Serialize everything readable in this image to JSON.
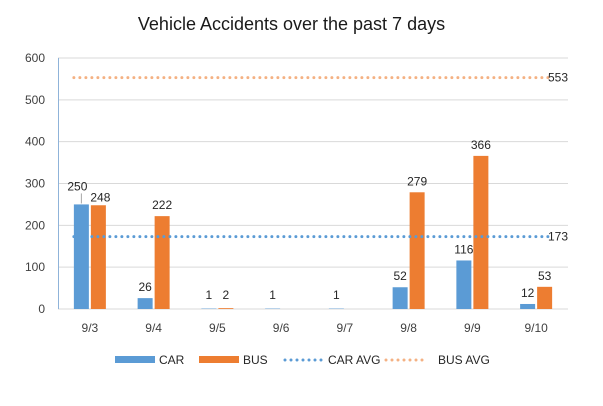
{
  "chart_data": {
    "type": "bar",
    "title": "Vehicle Accidents over the past 7 days",
    "categories": [
      "9/3",
      "9/4",
      "9/5",
      "9/6",
      "9/7",
      "9/8",
      "9/9",
      "9/10"
    ],
    "series": [
      {
        "name": "CAR",
        "color": "#5b9bd5",
        "values": [
          250,
          26,
          1,
          1,
          1,
          52,
          116,
          12
        ],
        "labels": [
          "250",
          "26",
          "1",
          "1",
          "1",
          "52",
          "116",
          "12"
        ]
      },
      {
        "name": "BUS",
        "color": "#ed7d31",
        "values": [
          248,
          222,
          2,
          null,
          null,
          279,
          366,
          53
        ],
        "labels": [
          "248",
          "222",
          "2",
          "",
          "",
          "279",
          "366",
          "53"
        ]
      }
    ],
    "reference_lines": [
      {
        "name": "CAR AVG",
        "value": 173,
        "label": "173",
        "color": "#5b9bd5"
      },
      {
        "name": "BUS AVG",
        "value": 553,
        "label": "553",
        "color": "#f4b183"
      }
    ],
    "ylim": [
      0,
      600
    ],
    "yticks": [
      "0",
      "100",
      "200",
      "300",
      "400",
      "500",
      "600"
    ],
    "grid": true,
    "legend": "bottom",
    "xlabel": "",
    "ylabel": ""
  }
}
